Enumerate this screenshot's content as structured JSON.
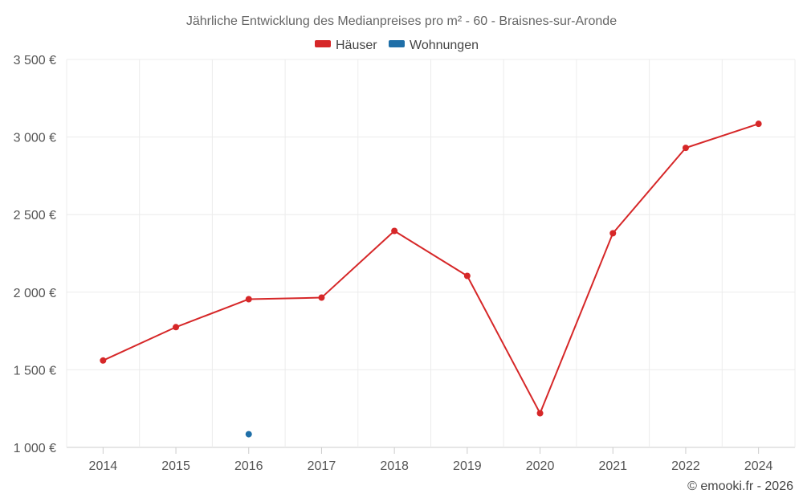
{
  "chart_data": {
    "type": "line",
    "title": "Jährliche Entwicklung des Medianpreises pro m² - 60 - Braisnes-sur-Aronde",
    "categories": [
      "2014",
      "2015",
      "2016",
      "2017",
      "2018",
      "2019",
      "2020",
      "2021",
      "2022",
      "2024"
    ],
    "ylim": [
      1000,
      3500
    ],
    "yticks": [
      1000,
      1500,
      2000,
      2500,
      3000,
      3500
    ],
    "ytick_labels": [
      "1 000 €",
      "1 500 €",
      "2 000 €",
      "2 500 €",
      "3 000 €",
      "3 500 €"
    ],
    "grid": true,
    "legend_position": "top-center",
    "series": [
      {
        "name": "Häuser",
        "color": "#d62728",
        "style": "line",
        "values": [
          1560,
          1775,
          1955,
          1965,
          2395,
          2105,
          1220,
          2380,
          2930,
          3085
        ]
      },
      {
        "name": "Wohnungen",
        "color": "#1f6fa8",
        "style": "points",
        "values": [
          null,
          null,
          1085,
          null,
          null,
          null,
          null,
          null,
          null,
          null
        ]
      }
    ]
  },
  "credit": "© emooki.fr - 2026"
}
